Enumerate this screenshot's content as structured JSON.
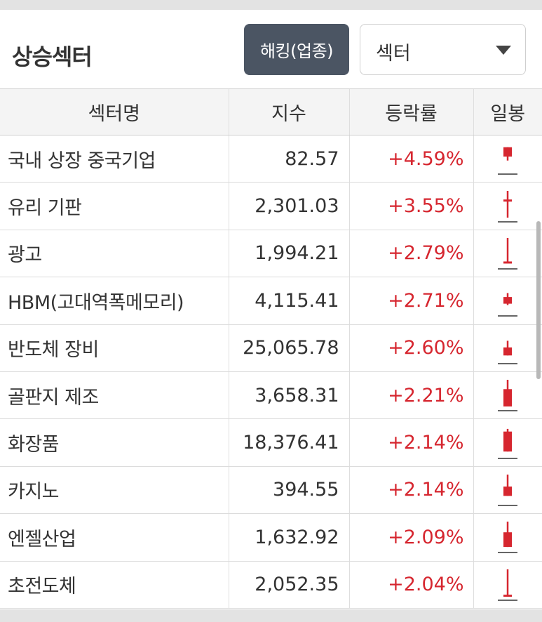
{
  "header": {
    "title": "상승섹터",
    "hedge_button": "해킹(업종)",
    "select_value": "섹터"
  },
  "table": {
    "columns": [
      "섹터명",
      "지수",
      "등락률",
      "일봉"
    ],
    "rows": [
      {
        "name": "국내 상장 중국기업",
        "index": "82.57",
        "change": "+4.59%",
        "candle": {
          "o": 0.5,
          "h": 0.15,
          "l": 0.65,
          "c": 0.15
        }
      },
      {
        "name": "유리 기판",
        "index": "2,301.03",
        "change": "+3.55%",
        "candle": {
          "o": 0.35,
          "h": 0.0,
          "l": 1.0,
          "c": 0.32
        }
      },
      {
        "name": "광고",
        "index": "1,994.21",
        "change": "+2.79%",
        "candle": {
          "o": 0.92,
          "h": 0.0,
          "l": 0.92,
          "c": 0.88
        }
      },
      {
        "name": "HBM(고대역폭메모리)",
        "index": "4,115.41",
        "change": "+2.71%",
        "candle": {
          "o": 0.7,
          "h": 0.3,
          "l": 0.75,
          "c": 0.45
        }
      },
      {
        "name": "반도체 장비",
        "index": "25,065.78",
        "change": "+2.60%",
        "candle": {
          "o": 0.85,
          "h": 0.3,
          "l": 0.85,
          "c": 0.55
        }
      },
      {
        "name": "골판지 제조",
        "index": "3,658.31",
        "change": "+2.21%",
        "candle": {
          "o": 1.0,
          "h": 0.0,
          "l": 1.0,
          "c": 0.35
        }
      },
      {
        "name": "화장품",
        "index": "18,376.41",
        "change": "+2.14%",
        "candle": {
          "o": 0.9,
          "h": 0.05,
          "l": 0.9,
          "c": 0.15
        }
      },
      {
        "name": "카지노",
        "index": "394.55",
        "change": "+2.14%",
        "candle": {
          "o": 0.8,
          "h": 0.0,
          "l": 0.8,
          "c": 0.45
        }
      },
      {
        "name": "엔젤산업",
        "index": "1,632.92",
        "change": "+2.09%",
        "candle": {
          "o": 0.95,
          "h": 0.0,
          "l": 0.95,
          "c": 0.4
        }
      },
      {
        "name": "초전도체",
        "index": "2,052.35",
        "change": "+2.04%",
        "candle": {
          "o": 1.0,
          "h": 0.0,
          "l": 1.0,
          "c": 0.95
        }
      }
    ]
  },
  "colors": {
    "up": "#d6262f",
    "base_line": "#666666",
    "button_bg": "#4b5563"
  }
}
